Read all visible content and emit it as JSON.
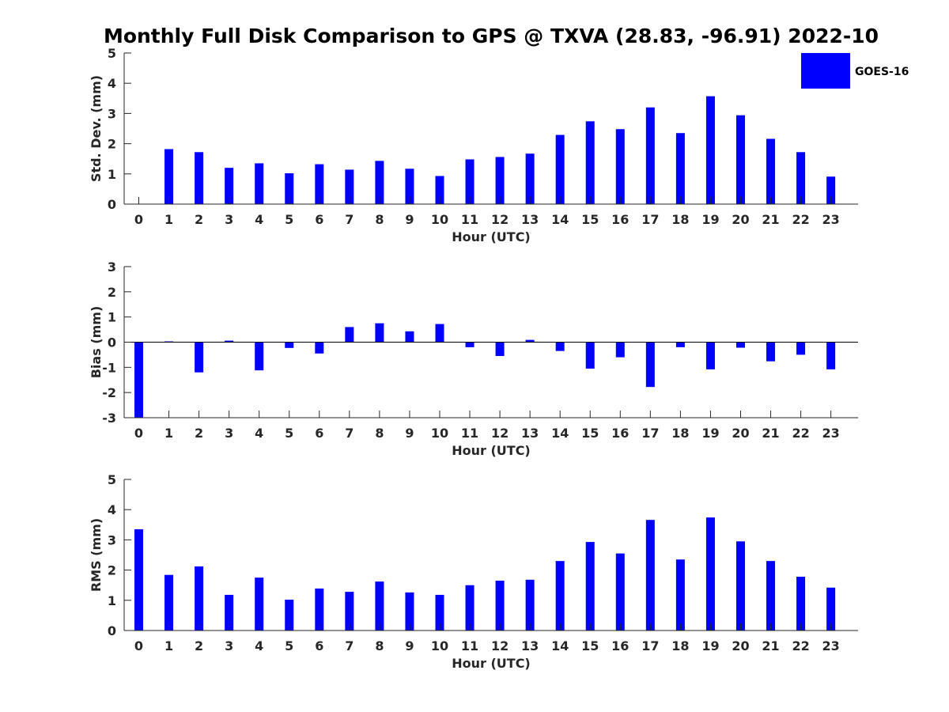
{
  "title": "Monthly Full Disk Comparison to GPS @ TXVA (28.83, -96.91) 2022-10",
  "colors": {
    "bar": "#0000ff",
    "axis": "#262626",
    "background": "#ffffff"
  },
  "legend": {
    "label": "GOES-16",
    "placement": "top-right"
  },
  "chart_data": [
    {
      "type": "bar",
      "categories": [
        "0",
        "1",
        "2",
        "3",
        "4",
        "5",
        "6",
        "7",
        "8",
        "9",
        "10",
        "11",
        "12",
        "13",
        "14",
        "15",
        "16",
        "17",
        "18",
        "19",
        "20",
        "21",
        "22",
        "23"
      ],
      "series": [
        {
          "name": "GOES-16",
          "values": [
            0,
            1.82,
            1.72,
            1.2,
            1.35,
            1.02,
            1.32,
            1.14,
            1.43,
            1.17,
            0.93,
            1.48,
            1.56,
            1.67,
            2.29,
            2.74,
            2.48,
            3.2,
            2.35,
            3.57,
            2.94,
            2.16,
            1.72,
            0.91
          ]
        }
      ],
      "xlabel": "Hour (UTC)",
      "ylabel": "Std. Dev. (mm)",
      "ylim": [
        0,
        5
      ],
      "yticks": [
        "0",
        "1",
        "2",
        "3",
        "4",
        "5"
      ],
      "grid": false
    },
    {
      "type": "bar",
      "categories": [
        "0",
        "1",
        "2",
        "3",
        "4",
        "5",
        "6",
        "7",
        "8",
        "9",
        "10",
        "11",
        "12",
        "13",
        "14",
        "15",
        "16",
        "17",
        "18",
        "19",
        "20",
        "21",
        "22",
        "23"
      ],
      "series": [
        {
          "name": "GOES-16",
          "values": [
            -3.0,
            0.03,
            -1.2,
            0.06,
            -1.12,
            -0.23,
            -0.45,
            0.6,
            0.75,
            0.43,
            0.72,
            -0.2,
            -0.55,
            0.09,
            -0.35,
            -1.05,
            -0.6,
            -1.78,
            -0.2,
            -1.08,
            -0.22,
            -0.76,
            -0.5,
            -1.08
          ]
        }
      ],
      "xlabel": "Hour (UTC)",
      "ylabel": "Bias (mm)",
      "ylim": [
        -3,
        3
      ],
      "yticks": [
        "-3",
        "-2",
        "-1",
        "0",
        "1",
        "2",
        "3"
      ],
      "grid": false
    },
    {
      "type": "bar",
      "categories": [
        "0",
        "1",
        "2",
        "3",
        "4",
        "5",
        "6",
        "7",
        "8",
        "9",
        "10",
        "11",
        "12",
        "13",
        "14",
        "15",
        "16",
        "17",
        "18",
        "19",
        "20",
        "21",
        "22",
        "23"
      ],
      "series": [
        {
          "name": "GOES-16",
          "values": [
            3.35,
            1.84,
            2.12,
            1.18,
            1.75,
            1.02,
            1.39,
            1.28,
            1.62,
            1.26,
            1.18,
            1.5,
            1.65,
            1.68,
            2.3,
            2.93,
            2.55,
            3.66,
            2.35,
            3.74,
            2.95,
            2.3,
            1.78,
            1.42
          ]
        }
      ],
      "xlabel": "Hour (UTC)",
      "ylabel": "RMS (mm)",
      "ylim": [
        0,
        5
      ],
      "yticks": [
        "0",
        "1",
        "2",
        "3",
        "4",
        "5"
      ],
      "grid": false
    }
  ]
}
